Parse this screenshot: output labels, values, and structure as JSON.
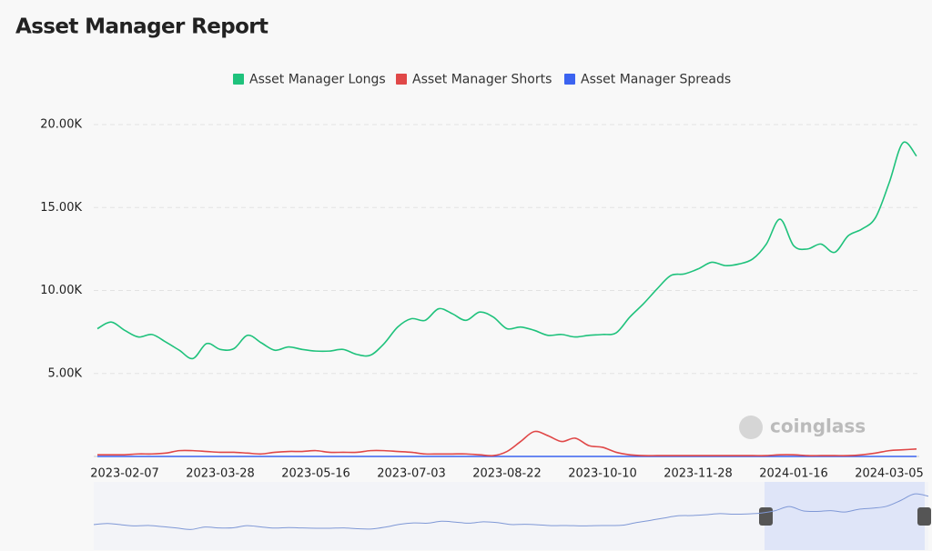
{
  "chart_data": {
    "type": "line",
    "title": "Asset Manager Report",
    "watermark": "coinglass",
    "categories": [
      null,
      null,
      "2023-02-07",
      null,
      null,
      null,
      null,
      null,
      null,
      "2023-03-28",
      null,
      null,
      null,
      null,
      null,
      null,
      "2023-05-16",
      null,
      null,
      null,
      null,
      null,
      null,
      "2023-07-03",
      null,
      null,
      null,
      null,
      null,
      null,
      "2023-08-22",
      null,
      null,
      null,
      null,
      null,
      null,
      "2023-10-10",
      null,
      null,
      null,
      null,
      null,
      null,
      "2023-11-28",
      null,
      null,
      null,
      null,
      null,
      null,
      "2024-01-16",
      null,
      null,
      null,
      null,
      null,
      null,
      "2024-03-05",
      null,
      null
    ],
    "series": [
      {
        "name": "Asset Manager Longs",
        "color": "#1fc27c",
        "values": [
          7700,
          8100,
          7600,
          7200,
          7350,
          6900,
          6400,
          5900,
          6800,
          6450,
          6500,
          7300,
          6850,
          6400,
          6600,
          6450,
          6350,
          6350,
          6450,
          6150,
          6100,
          6800,
          7800,
          8300,
          8200,
          8900,
          8600,
          8200,
          8700,
          8400,
          7700,
          7800,
          7600,
          7300,
          7350,
          7200,
          7300,
          7350,
          7450,
          8400,
          9200,
          10100,
          10900,
          11000,
          11300,
          11700,
          11500,
          11600,
          11900,
          12800,
          14300,
          12700,
          12500,
          12800,
          12300,
          13300,
          13700,
          14400,
          16500,
          18900,
          18100
        ]
      },
      {
        "name": "Asset Manager Shorts",
        "color": "#e04848",
        "values": [
          100,
          100,
          100,
          150,
          150,
          200,
          350,
          350,
          300,
          250,
          250,
          200,
          150,
          250,
          300,
          300,
          350,
          250,
          250,
          250,
          350,
          350,
          300,
          250,
          150,
          150,
          150,
          150,
          100,
          50,
          300,
          900,
          1500,
          1250,
          900,
          1100,
          650,
          550,
          250,
          100,
          50,
          50,
          50,
          50,
          50,
          50,
          50,
          50,
          50,
          50,
          100,
          100,
          50,
          50,
          50,
          50,
          100,
          200,
          350,
          400,
          450
        ]
      },
      {
        "name": "Asset Manager Spreads",
        "color": "#3b63f0",
        "values": [
          0,
          0,
          0,
          0,
          0,
          0,
          0,
          0,
          0,
          0,
          0,
          0,
          0,
          0,
          0,
          0,
          0,
          0,
          0,
          0,
          0,
          0,
          0,
          0,
          0,
          0,
          0,
          0,
          0,
          0,
          0,
          0,
          0,
          0,
          0,
          0,
          0,
          0,
          0,
          0,
          0,
          0,
          0,
          0,
          0,
          0,
          0,
          0,
          0,
          0,
          0,
          0,
          0,
          0,
          0,
          0,
          0,
          0,
          0,
          0,
          0
        ]
      }
    ],
    "ylim": [
      0,
      20000
    ],
    "yticks": [
      {
        "value": 5000,
        "label": "5.00K"
      },
      {
        "value": 10000,
        "label": "10.00K"
      },
      {
        "value": 15000,
        "label": "15.00K"
      },
      {
        "value": 20000,
        "label": "20.00K"
      }
    ],
    "grid": true,
    "legend": "top"
  }
}
